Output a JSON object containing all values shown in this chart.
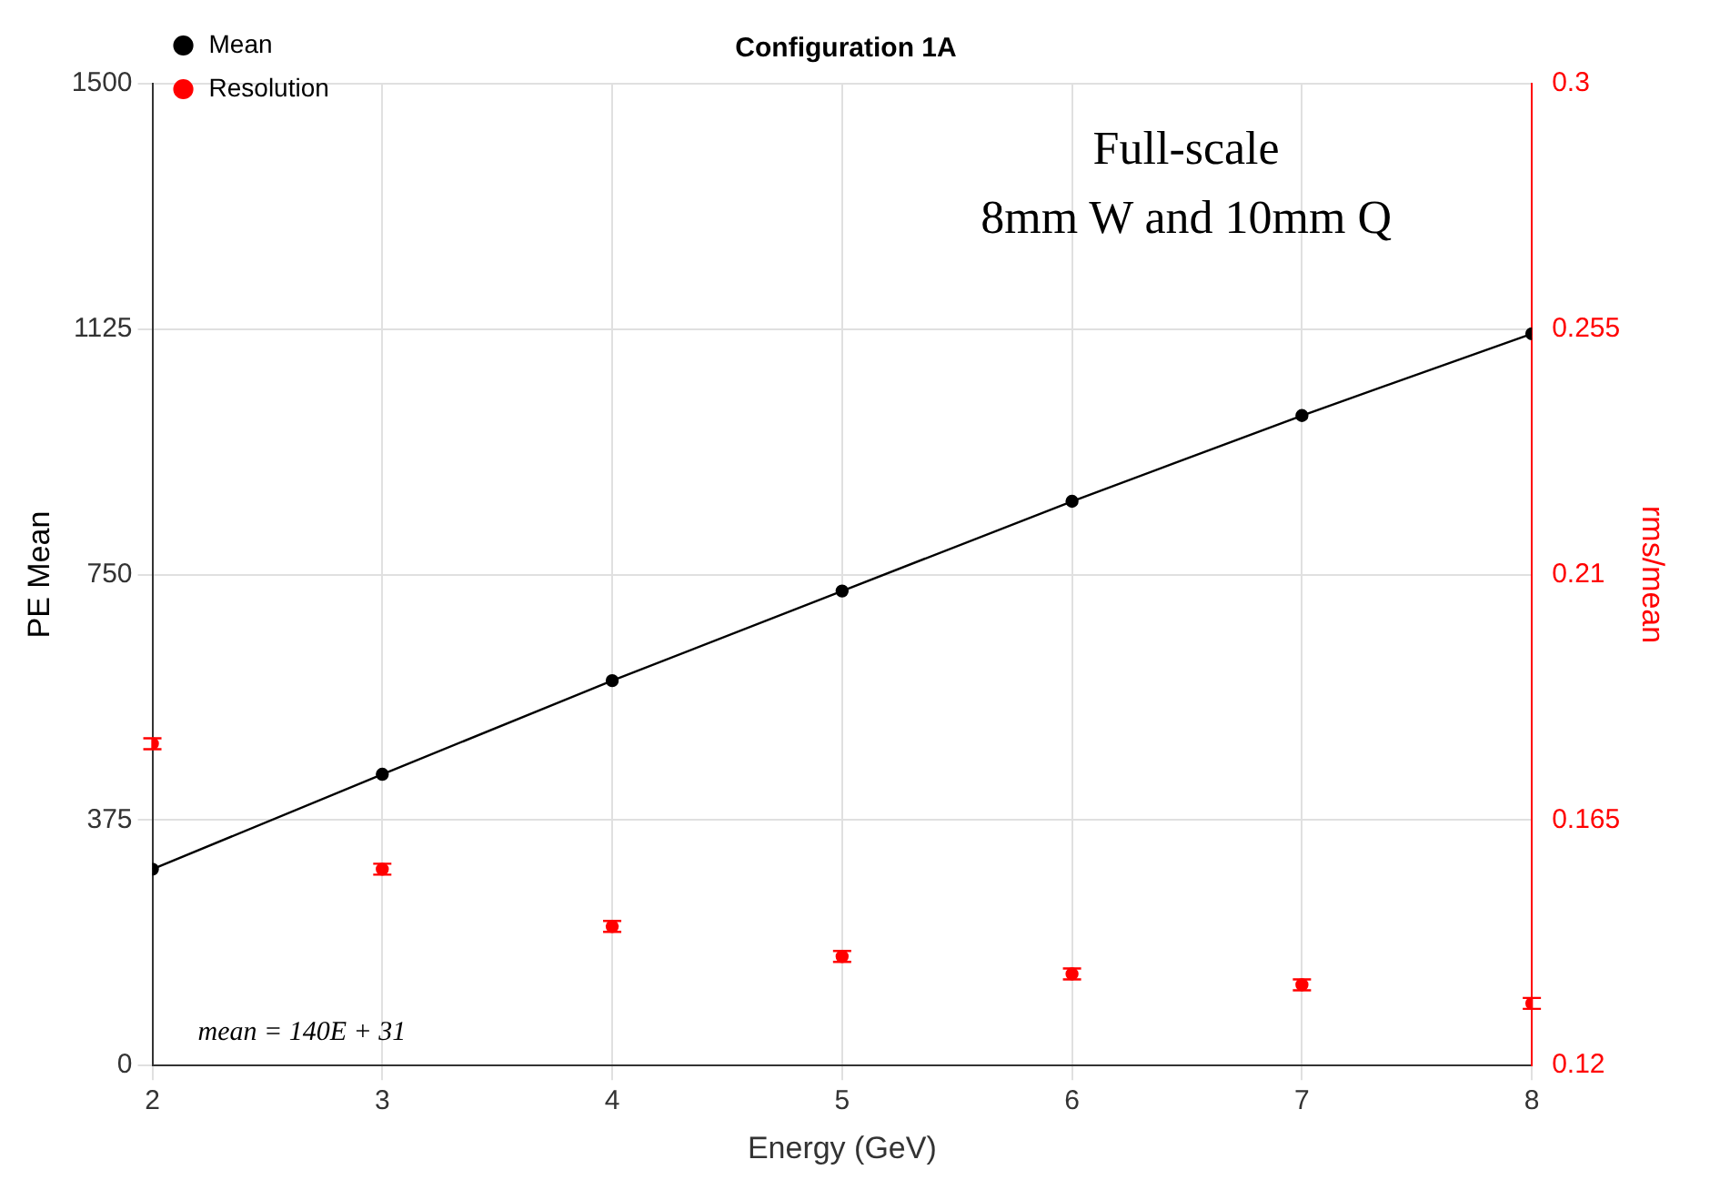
{
  "chart_data": {
    "type": "line",
    "title": "Configuration 1A",
    "xlabel": "Energy (GeV)",
    "ylabel": "PE Mean",
    "y2label": "rms/mean",
    "x": [
      2,
      3,
      4,
      5,
      6,
      7,
      8
    ],
    "series": [
      {
        "name": "Mean",
        "color": "#000000",
        "values": [
          300,
          445,
          588,
          725,
          862,
          993,
          1118
        ],
        "marker": "circle",
        "line_style": "solid"
      },
      {
        "name": "Resolution",
        "type": "scatter",
        "axis": "y2",
        "color": "#ff0000",
        "values": [
          0.179,
          0.156,
          0.1455,
          0.14,
          0.1368,
          0.1348,
          0.1314
        ],
        "errors": [
          0.001,
          0.001,
          0.001,
          0.001,
          0.001,
          0.001,
          0.001
        ],
        "marker": "circle"
      }
    ],
    "xlim": [
      2,
      8
    ],
    "xticks": [
      2,
      3,
      4,
      5,
      6,
      7,
      8
    ],
    "ylim": [
      0,
      1500
    ],
    "yticks": [
      0,
      375,
      750,
      1125,
      1500
    ],
    "y2lim": [
      0.12,
      0.3
    ],
    "y2ticks": [
      0.12,
      0.165,
      0.21,
      0.255,
      0.3
    ],
    "grid": true,
    "legend": "top left",
    "annotations": [
      "Full-scale",
      "8mm W and 10mm Q",
      "mean = 140E + 31"
    ]
  }
}
